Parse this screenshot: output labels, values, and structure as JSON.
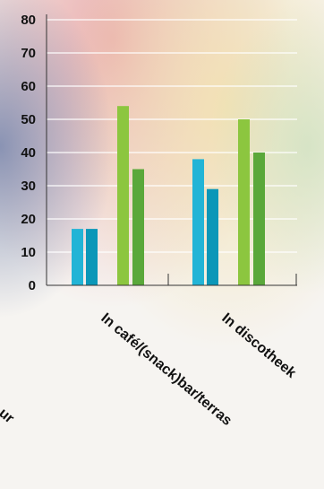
{
  "chart_data": {
    "type": "bar",
    "title": "",
    "xlabel": "",
    "ylabel": "",
    "ylim": [
      0,
      80
    ],
    "yticks": [
      0,
      10,
      20,
      30,
      40,
      50,
      60,
      70,
      80
    ],
    "categories": [
      "In café/(snack)bar/terras",
      "In discotheek"
    ],
    "series": [
      {
        "values": [
          17,
          38
        ],
        "color": "#22b4d6"
      },
      {
        "values": [
          17,
          29
        ],
        "color": "#0b97b8"
      },
      {
        "values": [
          54,
          50
        ],
        "color": "#8cc63f"
      },
      {
        "values": [
          35,
          40
        ],
        "color": "#5aa83a"
      }
    ],
    "cut_off_label": "ur",
    "grid": true,
    "legend": "none"
  }
}
